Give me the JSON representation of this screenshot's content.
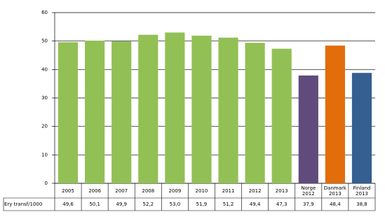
{
  "chart_data": {
    "type": "bar",
    "categories": [
      "2005",
      "2006",
      "2007",
      "2008",
      "2009",
      "2010",
      "2011",
      "2012",
      "2013",
      "Norge\n2012",
      "Danmark\n2013",
      "Finland\n2013"
    ],
    "series": [
      {
        "name": "Ery transf/1000",
        "values": [
          49.6,
          50.1,
          49.9,
          52.2,
          53.0,
          51.9,
          51.2,
          49.4,
          47.3,
          37.9,
          48.4,
          38.8
        ],
        "value_labels": [
          "49,6",
          "50,1",
          "49,9",
          "52,2",
          "53,0",
          "51,9",
          "51,2",
          "49,4",
          "47,3",
          "37,9",
          "48,4",
          "38,8"
        ],
        "colors": [
          "#92c055",
          "#92c055",
          "#92c055",
          "#92c055",
          "#92c055",
          "#92c055",
          "#92c055",
          "#92c055",
          "#92c055",
          "#614b7c",
          "#e36c0b",
          "#355e91"
        ]
      }
    ],
    "ylim": [
      0,
      60
    ],
    "yticks": [
      0,
      10,
      20,
      30,
      40,
      50,
      60
    ],
    "grid": true
  }
}
